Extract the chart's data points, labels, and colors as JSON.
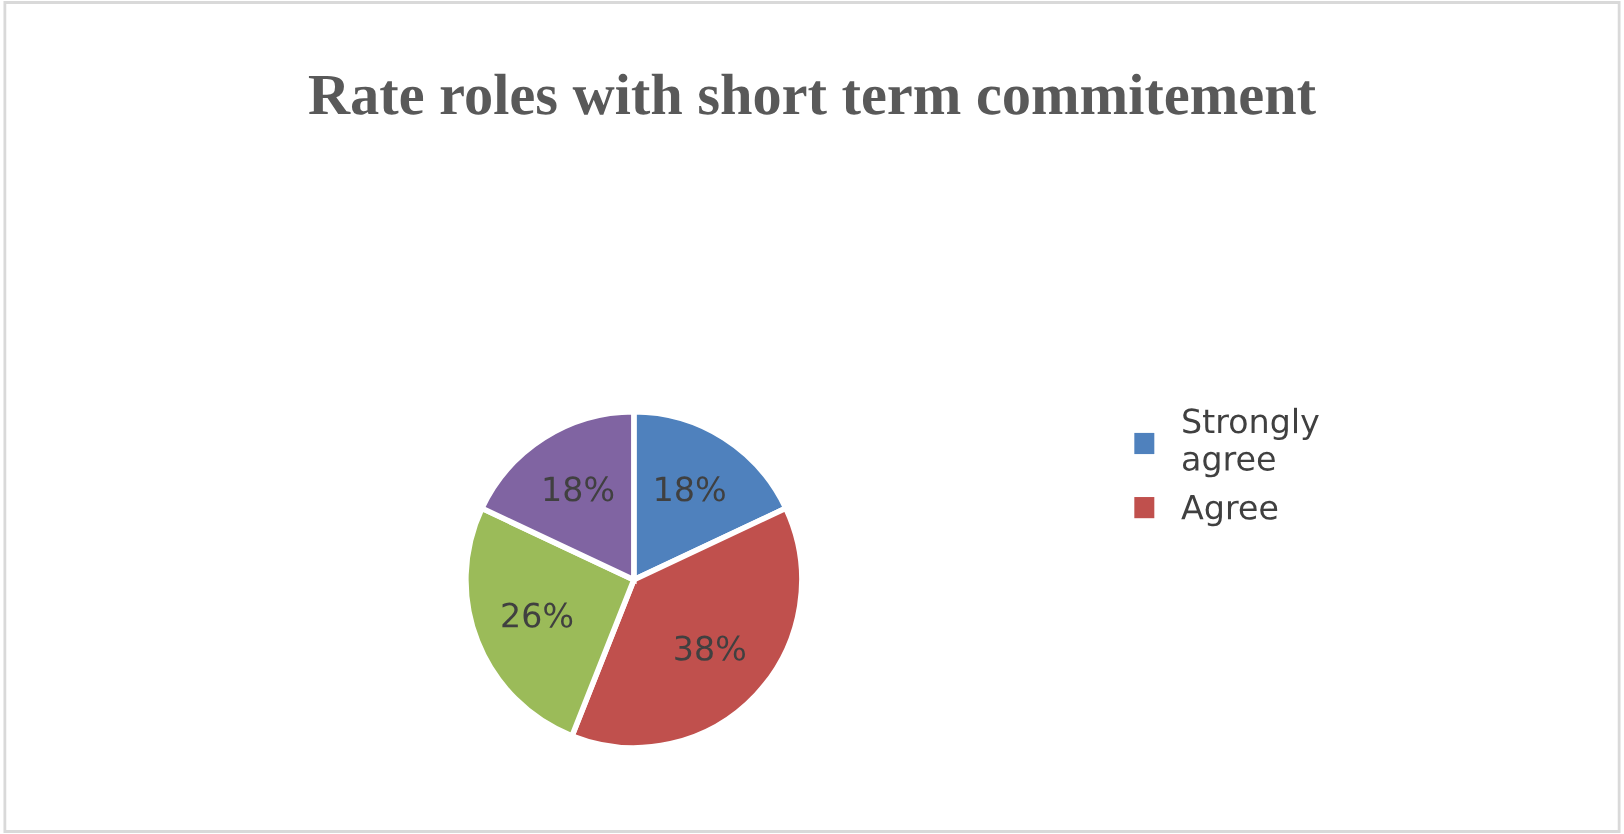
{
  "chart_data": {
    "type": "pie",
    "title": "Rate roles with short term commitement",
    "categories": [
      "Strongly agree",
      "Agree",
      null,
      null
    ],
    "values": [
      18,
      38,
      26,
      18
    ],
    "colors": [
      "#4f81bd",
      "#c0504d",
      "#9bbb59",
      "#8064a2"
    ],
    "value_labels": [
      "18%",
      "38%",
      "26%",
      "18%"
    ],
    "legend": "right"
  }
}
